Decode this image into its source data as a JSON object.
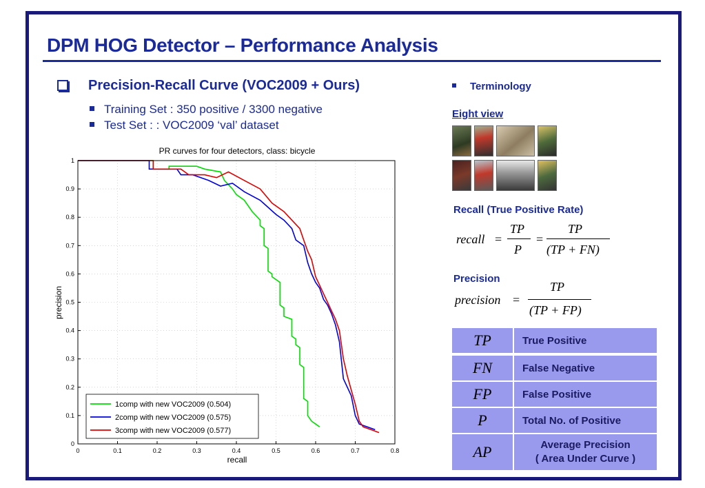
{
  "slide": {
    "title": "DPM HOG Detector – Performance Analysis",
    "section_heading": "Precision-Recall Curve (VOC2009 + Ours)",
    "bullets": [
      "Training Set : 350 positive / 3300 negative",
      "Test Set : : VOC2009 ‘val’ dataset"
    ],
    "accent_color": "#1a2a9a"
  },
  "sidebar": {
    "terminology": "Terminology",
    "eight_view": "Eight view",
    "recall_heading": "Recall (True Positive Rate)",
    "precision_heading": "Precision",
    "recall_formula": {
      "lhs": "recall",
      "eq": "=",
      "num1": "TP",
      "den1": "P",
      "num2": "TP",
      "den2": "(TP + FN)"
    },
    "precision_formula": {
      "lhs": "precision",
      "eq": "=",
      "num": "TP",
      "den": "(TP + FP)"
    },
    "terms": [
      {
        "symbol": "TP",
        "desc": "True Positive"
      },
      {
        "symbol": "FN",
        "desc": "False Negative"
      },
      {
        "symbol": "FP",
        "desc": "False Positive"
      },
      {
        "symbol": "P",
        "desc": "Total No. of Positive"
      },
      {
        "symbol": "AP",
        "desc": "Average Precision\n( Area Under Curve )"
      }
    ]
  },
  "chart_data": {
    "type": "line",
    "title": "PR curves for four detectors, class: bicycle",
    "xlabel": "recall",
    "ylabel": "precision",
    "xlim": [
      0,
      0.8
    ],
    "ylim": [
      0,
      1
    ],
    "xticks": [
      "0",
      "0.1",
      "0.2",
      "0.3",
      "0.4",
      "0.5",
      "0.6",
      "0.7",
      "0.8"
    ],
    "yticks": [
      "0",
      "0.1",
      "0.2",
      "0.3",
      "0.4",
      "0.5",
      "0.6",
      "0.7",
      "0.8",
      "0.9",
      "1"
    ],
    "grid": true,
    "legend_position": "bottom-right",
    "series": [
      {
        "name": "1comp with new VOC2009 (0.504)",
        "color": "#00dd00",
        "x": [
          0,
          0.19,
          0.19,
          0.23,
          0.23,
          0.3,
          0.32,
          0.36,
          0.37,
          0.39,
          0.4,
          0.42,
          0.44,
          0.46,
          0.46,
          0.47,
          0.47,
          0.48,
          0.48,
          0.49,
          0.49,
          0.51,
          0.51,
          0.52,
          0.52,
          0.54,
          0.54,
          0.55,
          0.55,
          0.56,
          0.56,
          0.57,
          0.57,
          0.58,
          0.58,
          0.59,
          0.6,
          0.61
        ],
        "y": [
          1,
          1,
          0.97,
          0.97,
          0.98,
          0.98,
          0.97,
          0.96,
          0.93,
          0.9,
          0.88,
          0.86,
          0.82,
          0.79,
          0.77,
          0.76,
          0.7,
          0.69,
          0.61,
          0.6,
          0.59,
          0.57,
          0.49,
          0.48,
          0.45,
          0.44,
          0.38,
          0.37,
          0.35,
          0.34,
          0.28,
          0.27,
          0.16,
          0.15,
          0.1,
          0.08,
          0.07,
          0.06
        ]
      },
      {
        "name": "2comp with new VOC2009 (0.575)",
        "color": "#0000dd",
        "x": [
          0,
          0.18,
          0.18,
          0.25,
          0.26,
          0.29,
          0.33,
          0.36,
          0.39,
          0.42,
          0.46,
          0.5,
          0.52,
          0.54,
          0.55,
          0.57,
          0.58,
          0.59,
          0.6,
          0.61,
          0.62,
          0.63,
          0.64,
          0.65,
          0.66,
          0.67,
          0.68,
          0.69,
          0.7,
          0.71,
          0.73,
          0.75
        ],
        "y": [
          1,
          1,
          0.97,
          0.97,
          0.95,
          0.95,
          0.93,
          0.91,
          0.92,
          0.89,
          0.86,
          0.81,
          0.79,
          0.76,
          0.72,
          0.7,
          0.64,
          0.6,
          0.57,
          0.55,
          0.51,
          0.49,
          0.46,
          0.42,
          0.36,
          0.23,
          0.2,
          0.17,
          0.1,
          0.07,
          0.06,
          0.05
        ]
      },
      {
        "name": "3comp with new VOC2009 (0.577)",
        "color": "#dd0000",
        "x": [
          0,
          0.19,
          0.19,
          0.26,
          0.28,
          0.32,
          0.35,
          0.38,
          0.42,
          0.46,
          0.49,
          0.52,
          0.54,
          0.56,
          0.57,
          0.58,
          0.59,
          0.6,
          0.61,
          0.62,
          0.63,
          0.64,
          0.65,
          0.66,
          0.67,
          0.68,
          0.69,
          0.7,
          0.71,
          0.72,
          0.74,
          0.76
        ],
        "y": [
          1,
          1,
          0.97,
          0.97,
          0.95,
          0.95,
          0.94,
          0.96,
          0.93,
          0.9,
          0.85,
          0.82,
          0.79,
          0.76,
          0.72,
          0.68,
          0.65,
          0.59,
          0.56,
          0.53,
          0.5,
          0.47,
          0.44,
          0.4,
          0.3,
          0.24,
          0.19,
          0.14,
          0.08,
          0.06,
          0.05,
          0.04
        ]
      }
    ]
  }
}
